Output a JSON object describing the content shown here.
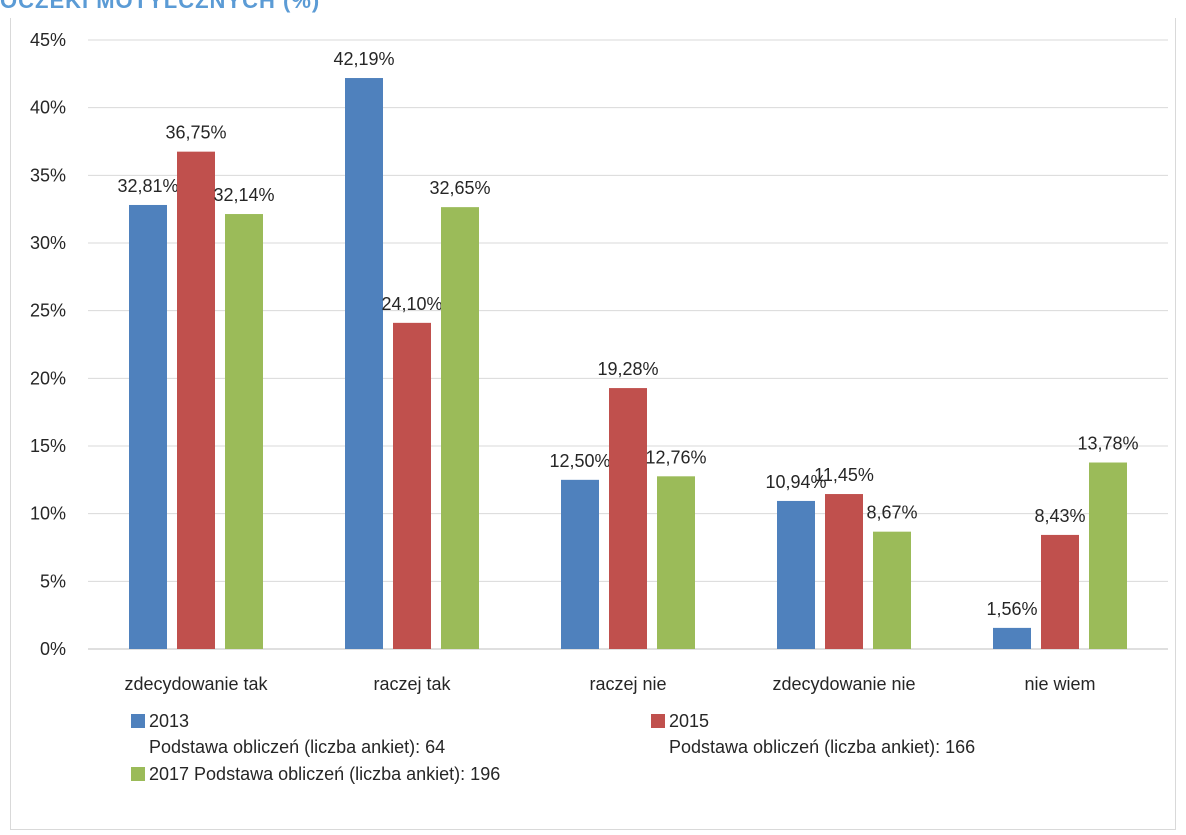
{
  "header": {
    "title": "OCZEKI MOTYLCZNYCH (%)"
  },
  "chart_data": {
    "type": "bar",
    "title": "",
    "xlabel": "",
    "ylabel": "",
    "ylim": [
      0,
      45
    ],
    "y_ticks": [
      "0%",
      "5%",
      "10%",
      "15%",
      "20%",
      "25%",
      "30%",
      "35%",
      "40%",
      "45%"
    ],
    "grid": true,
    "legend_position": "bottom",
    "categories": [
      "zdecydowanie tak",
      "raczej tak",
      "raczej nie",
      "zdecydowanie nie",
      "nie wiem"
    ],
    "series": [
      {
        "name": "2013",
        "note": "Podstawa obliczeń (liczba ankiet): 64",
        "color": "#4f81bd",
        "values": [
          32.81,
          42.19,
          12.5,
          10.94,
          1.56
        ],
        "labels": [
          "32,81%",
          "42,19%",
          "12,50%",
          "10,94%",
          "1,56%"
        ]
      },
      {
        "name": "2015",
        "note": "Podstawa obliczeń (liczba ankiet): 166",
        "color": "#c0504d",
        "values": [
          36.75,
          24.1,
          19.28,
          11.45,
          8.43
        ],
        "labels": [
          "36,75%",
          "24,10%",
          "19,28%",
          "11,45%",
          "8,43%"
        ]
      },
      {
        "name": "2017 Podstawa obliczeń (liczba ankiet): 196",
        "color": "#9bbb59",
        "values": [
          32.14,
          32.65,
          12.76,
          8.67,
          13.78
        ],
        "labels": [
          "32,14%",
          "32,65%",
          "12,76%",
          "8,67%",
          "13,78%"
        ]
      }
    ]
  }
}
